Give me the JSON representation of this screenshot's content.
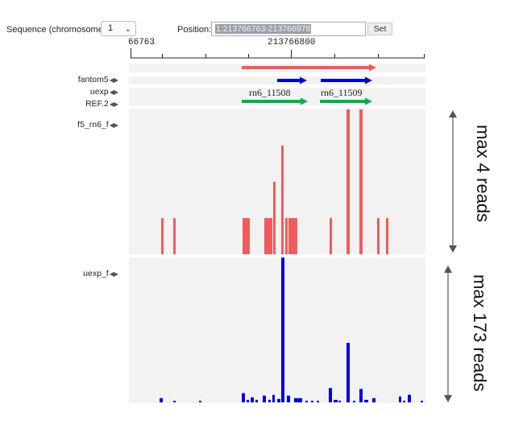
{
  "controls": {
    "sequence_label": "Sequence (chromosome):",
    "sequence_value": "1",
    "position_label": "Position:",
    "position_value": "1:213766763-213766978",
    "set_label": "Set"
  },
  "ruler": {
    "start_label": "66763",
    "mid_label": "213766800"
  },
  "tracks": {
    "fantom5": "fantom5",
    "uexp": "uexp",
    "ref2": "REF.2",
    "f5_rn6_f": "f5_rn6_f",
    "uexp_f": "uexp_f",
    "nav_arrows": "◀▶"
  },
  "features": {
    "gene1": "rn6_11508",
    "gene2": "rn6_11509"
  },
  "colors": {
    "red": "#f25b5b",
    "blue": "#0000dd",
    "green": "#00b050"
  },
  "chart_data": [
    {
      "type": "bar",
      "name": "f5_rn6_f",
      "scale_label": "max 4 reads",
      "ylim": [
        0,
        4
      ],
      "bars": [
        {
          "x": 200,
          "w": 3,
          "v": 1
        },
        {
          "x": 215,
          "w": 3,
          "v": 1
        },
        {
          "x": 301,
          "w": 9,
          "v": 1
        },
        {
          "x": 328,
          "w": 10,
          "v": 1
        },
        {
          "x": 339,
          "w": 3,
          "v": 2
        },
        {
          "x": 349,
          "w": 3,
          "v": 3
        },
        {
          "x": 354,
          "w": 3,
          "v": 1
        },
        {
          "x": 358,
          "w": 11,
          "v": 1
        },
        {
          "x": 409,
          "w": 3,
          "v": 1
        },
        {
          "x": 430,
          "w": 4,
          "v": 4
        },
        {
          "x": 446,
          "w": 4,
          "v": 4
        },
        {
          "x": 468,
          "w": 3,
          "v": 1
        },
        {
          "x": 479,
          "w": 3,
          "v": 1
        }
      ]
    },
    {
      "type": "bar",
      "name": "uexp_f",
      "scale_label": "max 173 reads",
      "ylim": [
        0,
        173
      ],
      "bars": [
        {
          "x": 198,
          "w": 4,
          "v": 5
        },
        {
          "x": 215,
          "w": 3,
          "v": 1
        },
        {
          "x": 247,
          "w": 3,
          "v": 1
        },
        {
          "x": 300,
          "w": 4,
          "v": 11
        },
        {
          "x": 306,
          "w": 3,
          "v": 3
        },
        {
          "x": 311,
          "w": 4,
          "v": 6
        },
        {
          "x": 317,
          "w": 3,
          "v": 3
        },
        {
          "x": 326,
          "w": 4,
          "v": 8
        },
        {
          "x": 333,
          "w": 3,
          "v": 3
        },
        {
          "x": 338,
          "w": 3,
          "v": 9
        },
        {
          "x": 344,
          "w": 4,
          "v": 4
        },
        {
          "x": 349,
          "w": 4,
          "v": 173
        },
        {
          "x": 356,
          "w": 4,
          "v": 8
        },
        {
          "x": 365,
          "w": 10,
          "v": 5
        },
        {
          "x": 379,
          "w": 3,
          "v": 1
        },
        {
          "x": 386,
          "w": 3,
          "v": 1
        },
        {
          "x": 393,
          "w": 3,
          "v": 1
        },
        {
          "x": 408,
          "w": 4,
          "v": 17
        },
        {
          "x": 414,
          "w": 5,
          "v": 3
        },
        {
          "x": 420,
          "w": 3,
          "v": 2
        },
        {
          "x": 430,
          "w": 4,
          "v": 71
        },
        {
          "x": 438,
          "w": 3,
          "v": 1
        },
        {
          "x": 446,
          "w": 4,
          "v": 16
        },
        {
          "x": 452,
          "w": 5,
          "v": 3
        },
        {
          "x": 462,
          "w": 4,
          "v": 5
        },
        {
          "x": 495,
          "w": 3,
          "v": 7
        },
        {
          "x": 500,
          "w": 3,
          "v": 2
        },
        {
          "x": 506,
          "w": 4,
          "v": 9
        },
        {
          "x": 522,
          "w": 3,
          "v": 1
        }
      ]
    }
  ]
}
